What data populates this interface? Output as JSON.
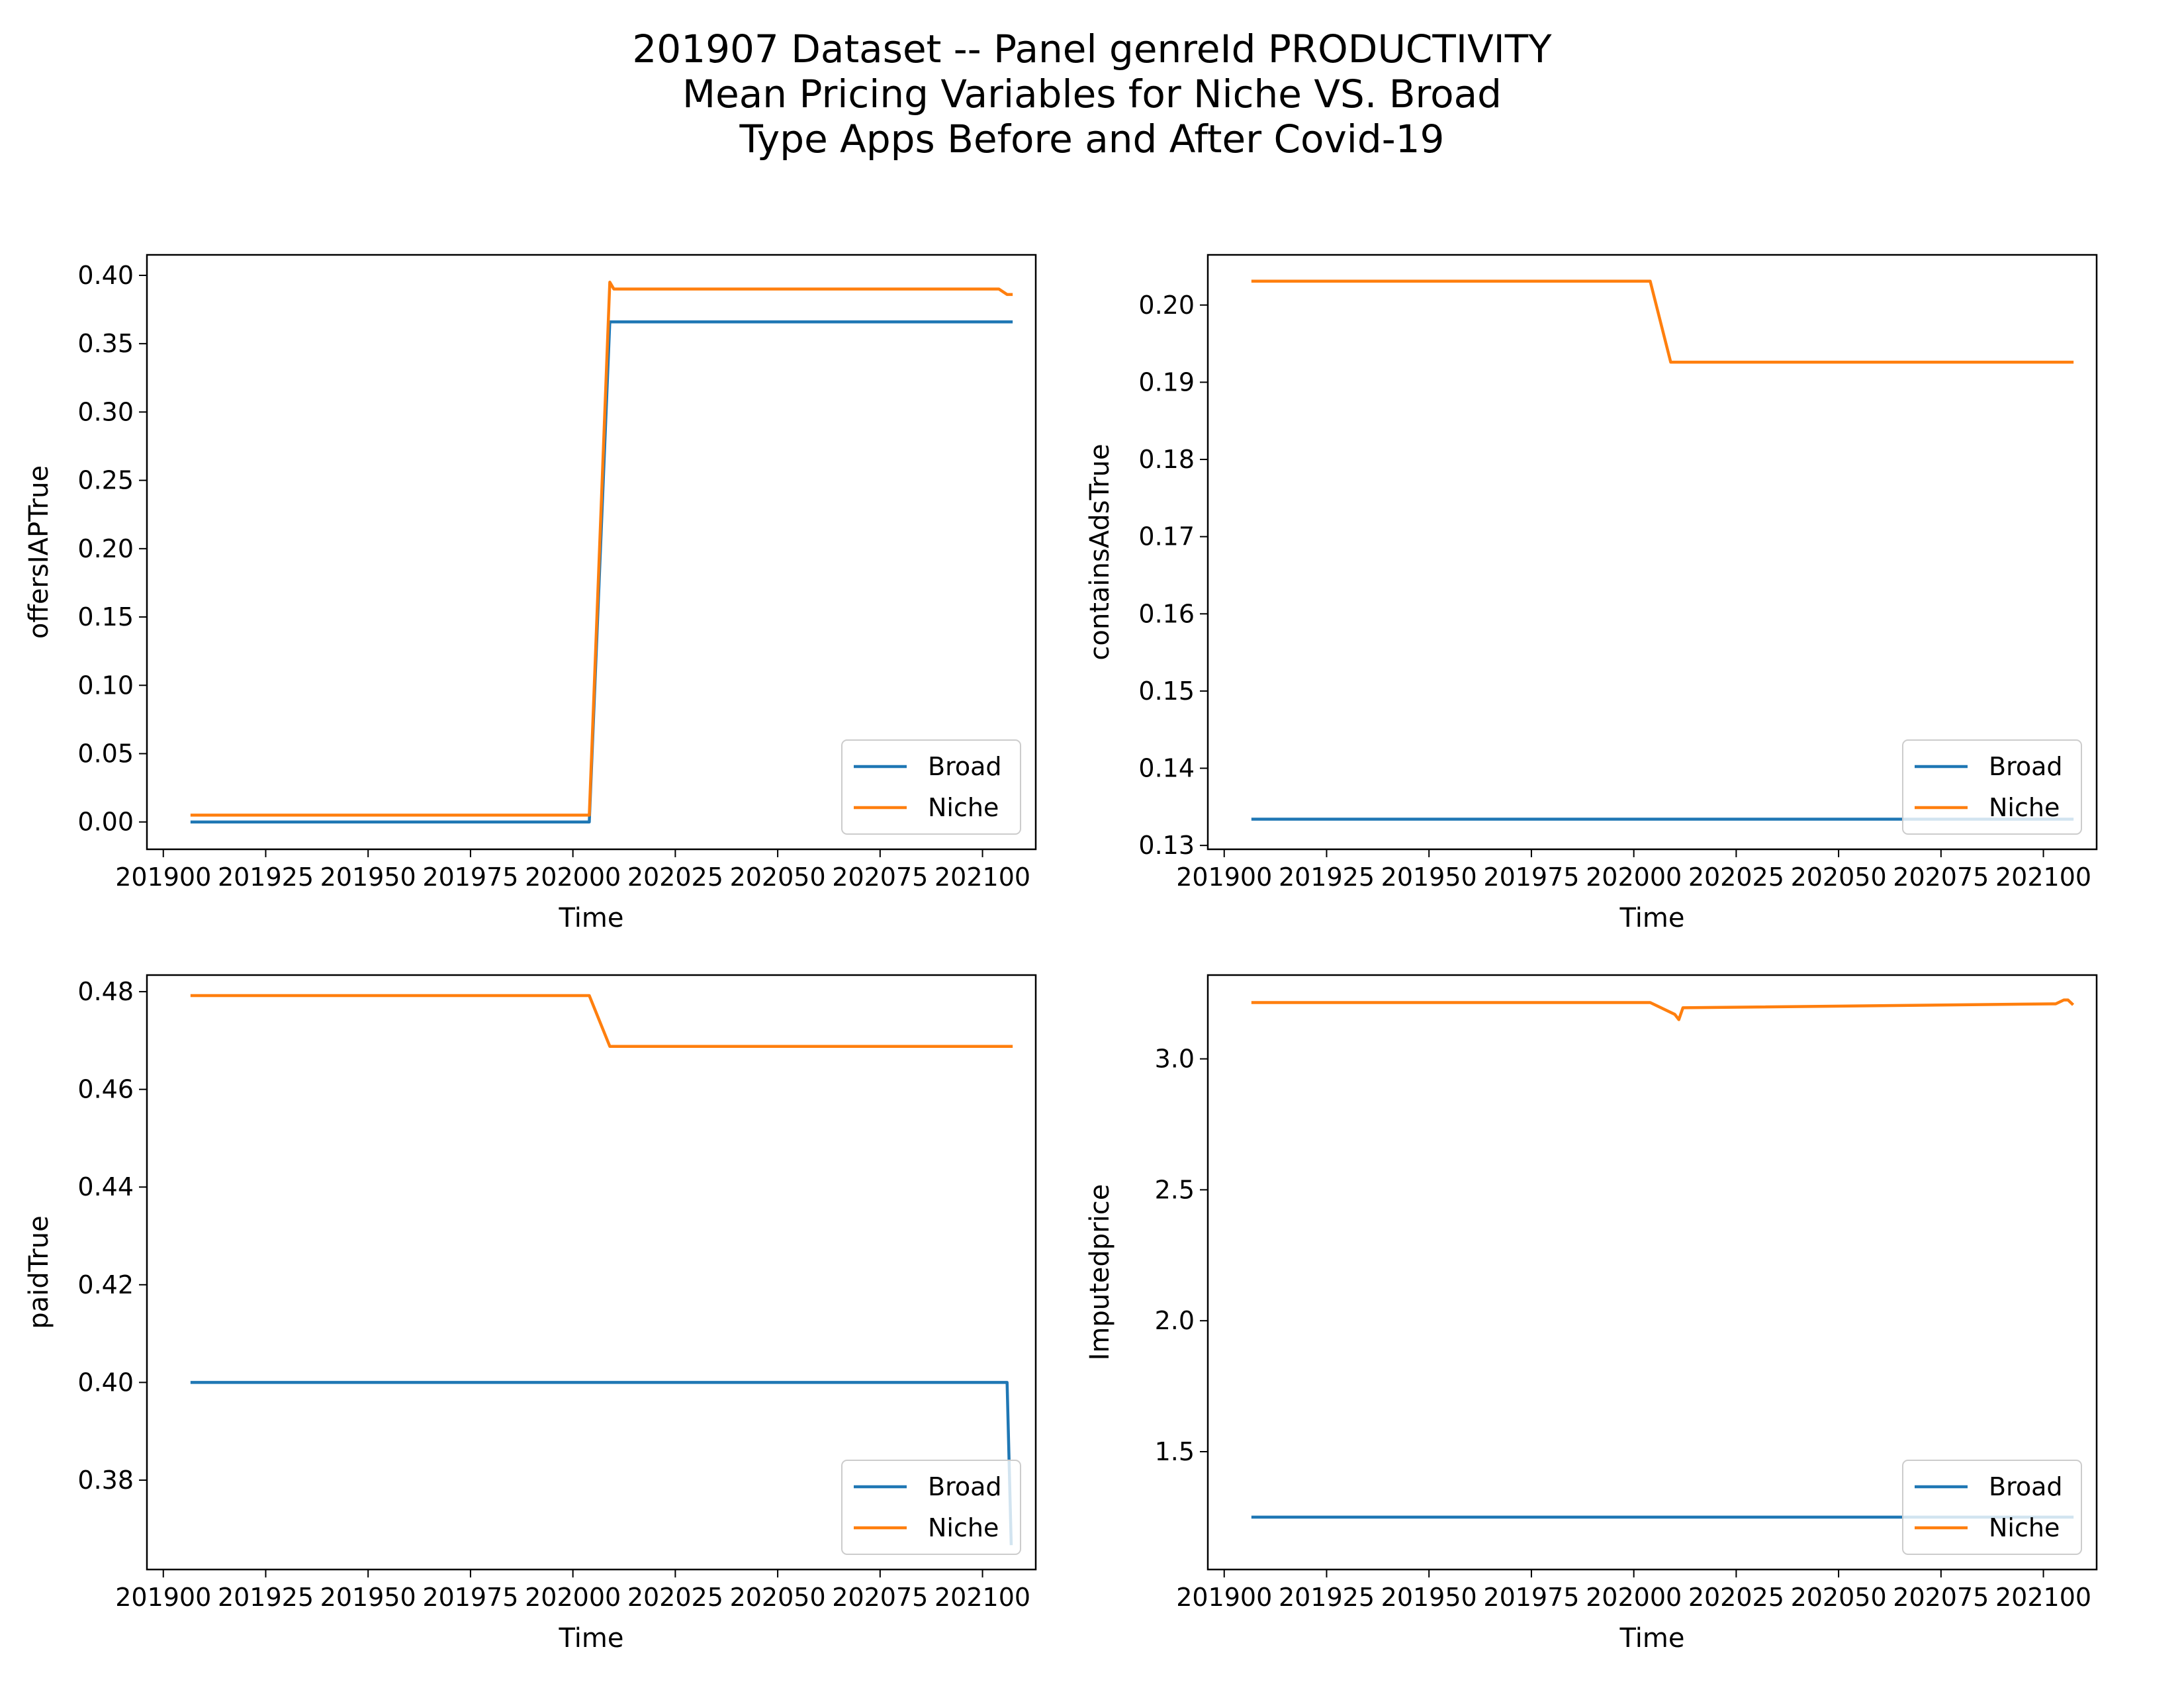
{
  "figure": {
    "title_lines": [
      "201907 Dataset -- Panel genreId PRODUCTIVITY",
      "Mean Pricing Variables for Niche VS. Broad",
      "Type Apps Before and After Covid-19"
    ]
  },
  "colors": {
    "Broad": "#1f77b4",
    "Niche": "#ff7f0e"
  },
  "chart_data": [
    {
      "type": "line",
      "title": "",
      "xlabel": "Time",
      "ylabel": "offersIAPTrue",
      "xlim": [
        201896,
        202113
      ],
      "ylim": [
        -0.02,
        0.415
      ],
      "xticks": [
        201900,
        201925,
        201950,
        201975,
        202000,
        202025,
        202050,
        202075,
        202100
      ],
      "yticks": [
        0.0,
        0.05,
        0.1,
        0.15,
        0.2,
        0.25,
        0.3,
        0.35,
        0.4
      ],
      "ytick_decimals": 2,
      "grid": false,
      "legend": "lower-right",
      "series": [
        {
          "name": "Broad",
          "x": [
            201907,
            202004,
            202009,
            202107
          ],
          "y": [
            0.0,
            0.0,
            0.366,
            0.366
          ]
        },
        {
          "name": "Niche",
          "x": [
            201907,
            202004,
            202009,
            202010,
            202103,
            202104,
            202106,
            202107
          ],
          "y": [
            0.005,
            0.005,
            0.395,
            0.39,
            0.39,
            0.39,
            0.386,
            0.386
          ]
        }
      ]
    },
    {
      "type": "line",
      "title": "",
      "xlabel": "Time",
      "ylabel": "containsAdsTrue",
      "xlim": [
        201896,
        202113
      ],
      "ylim": [
        0.1295,
        0.2065
      ],
      "xticks": [
        201900,
        201925,
        201950,
        201975,
        202000,
        202025,
        202050,
        202075,
        202100
      ],
      "yticks": [
        0.13,
        0.14,
        0.15,
        0.16,
        0.17,
        0.18,
        0.19,
        0.2
      ],
      "ytick_decimals": 2,
      "grid": false,
      "legend": "lower-right",
      "series": [
        {
          "name": "Broad",
          "x": [
            201907,
            202107
          ],
          "y": [
            0.1334,
            0.1334
          ]
        },
        {
          "name": "Niche",
          "x": [
            201907,
            202004,
            202009,
            202107
          ],
          "y": [
            0.2031,
            0.2031,
            0.1926,
            0.1926
          ]
        }
      ]
    },
    {
      "type": "line",
      "title": "",
      "xlabel": "Time",
      "ylabel": "paidTrue",
      "xlim": [
        201896,
        202113
      ],
      "ylim": [
        0.3617,
        0.4834
      ],
      "xticks": [
        201900,
        201925,
        201950,
        201975,
        202000,
        202025,
        202050,
        202075,
        202100
      ],
      "yticks": [
        0.38,
        0.4,
        0.42,
        0.44,
        0.46,
        0.48
      ],
      "ytick_decimals": 2,
      "grid": false,
      "legend": "lower-right",
      "series": [
        {
          "name": "Broad",
          "x": [
            201907,
            202106,
            202107
          ],
          "y": [
            0.4,
            0.4,
            0.367
          ]
        },
        {
          "name": "Niche",
          "x": [
            201907,
            202004,
            202009,
            202107
          ],
          "y": [
            0.4792,
            0.4792,
            0.4688,
            0.4688
          ]
        }
      ]
    },
    {
      "type": "line",
      "title": "",
      "xlabel": "Time",
      "ylabel": "Imputedprice",
      "xlim": [
        201896,
        202113
      ],
      "ylim": [
        1.05,
        3.32
      ],
      "xticks": [
        201900,
        201925,
        201950,
        201975,
        202000,
        202025,
        202050,
        202075,
        202100
      ],
      "yticks": [
        1.5,
        2.0,
        2.5,
        3.0
      ],
      "ytick_decimals": 1,
      "grid": false,
      "legend": "lower-right",
      "series": [
        {
          "name": "Broad",
          "x": [
            201907,
            202107
          ],
          "y": [
            1.25,
            1.25
          ]
        },
        {
          "name": "Niche",
          "x": [
            201907,
            202004,
            202010,
            202011,
            202012,
            202102,
            202103,
            202105,
            202106,
            202107
          ],
          "y": [
            3.215,
            3.215,
            3.17,
            3.15,
            3.195,
            3.21,
            3.21,
            3.225,
            3.225,
            3.21
          ]
        }
      ]
    }
  ]
}
